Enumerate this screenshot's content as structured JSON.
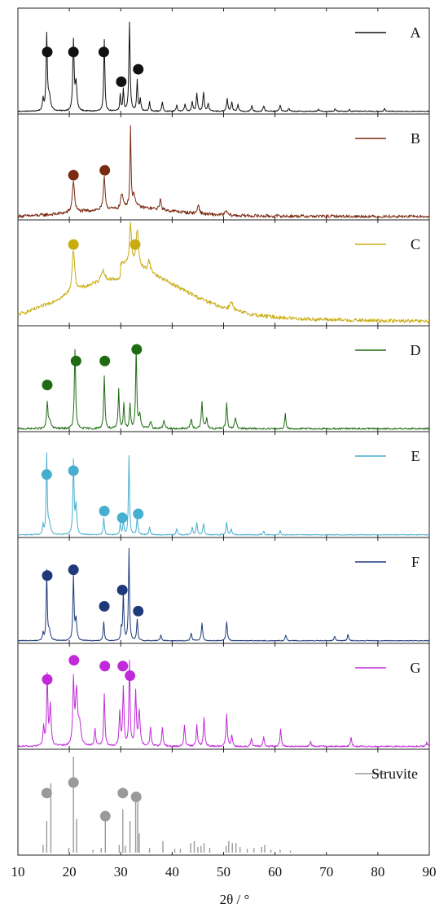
{
  "chart_data": {
    "type": "line",
    "xlabel": "2θ / °",
    "xlim": [
      10,
      90
    ],
    "x_ticks": [
      "10",
      "20",
      "30",
      "40",
      "50",
      "60",
      "70",
      "80",
      "90"
    ],
    "x_tick_values": [
      10,
      20,
      30,
      40,
      50,
      60,
      70,
      80,
      90
    ],
    "grid": false,
    "legend_placement": "top-right of each panel",
    "marker_shape": "circle",
    "series": [
      {
        "name": "A",
        "color": "#111111",
        "noise": 0.012,
        "bump": null,
        "style": "line",
        "peaks": [
          [
            14.9,
            0.12,
            0.14
          ],
          [
            15.6,
            0.78,
            0.14
          ],
          [
            16.1,
            0.15,
            0.3
          ],
          [
            20.8,
            0.72,
            0.15
          ],
          [
            21.3,
            0.28,
            0.2
          ],
          [
            26.8,
            0.74,
            0.13
          ],
          [
            29.9,
            0.17,
            0.12
          ],
          [
            30.5,
            0.22,
            0.12
          ],
          [
            31.7,
            0.92,
            0.14
          ],
          [
            33.2,
            0.32,
            0.13
          ],
          [
            33.8,
            0.12,
            0.15
          ],
          [
            35.6,
            0.1,
            0.12
          ],
          [
            38.1,
            0.09,
            0.15
          ],
          [
            40.9,
            0.06,
            0.15
          ],
          [
            42.5,
            0.08,
            0.15
          ],
          [
            43.9,
            0.1,
            0.15
          ],
          [
            44.8,
            0.18,
            0.15
          ],
          [
            46.1,
            0.2,
            0.15
          ],
          [
            47.0,
            0.08,
            0.15
          ],
          [
            50.7,
            0.13,
            0.15
          ],
          [
            51.6,
            0.09,
            0.15
          ],
          [
            52.8,
            0.07,
            0.15
          ],
          [
            55.5,
            0.06,
            0.15
          ],
          [
            57.8,
            0.06,
            0.15
          ],
          [
            61.0,
            0.07,
            0.15
          ],
          [
            62.7,
            0.03,
            0.15
          ],
          [
            68.5,
            0.02,
            0.15
          ],
          [
            71.7,
            0.03,
            0.15
          ],
          [
            74.5,
            0.02,
            0.15
          ],
          [
            81.3,
            0.03,
            0.15
          ]
        ],
        "markers": [
          [
            15.7,
            0.62
          ],
          [
            20.8,
            0.62
          ],
          [
            26.7,
            0.62
          ],
          [
            30.1,
            0.31
          ],
          [
            33.4,
            0.44
          ]
        ]
      },
      {
        "name": "B",
        "color": "#7a2a10",
        "noise": 0.035,
        "bump": [
          30,
          9,
          0.08
        ],
        "style": "line",
        "peaks": [
          [
            20.8,
            0.33,
            0.25
          ],
          [
            26.8,
            0.34,
            0.2
          ],
          [
            30.2,
            0.12,
            0.3
          ],
          [
            31.9,
            0.82,
            0.12
          ],
          [
            32.6,
            0.12,
            0.3
          ],
          [
            37.7,
            0.13,
            0.15
          ],
          [
            45.1,
            0.1,
            0.2
          ],
          [
            50.5,
            0.05,
            0.2
          ]
        ],
        "markers": [
          [
            20.8,
            0.44
          ],
          [
            26.9,
            0.49
          ]
        ]
      },
      {
        "name": "C",
        "color": "#c9ac10",
        "noise": 0.04,
        "bump": [
          30,
          11,
          0.45
        ],
        "style": "line",
        "peaks": [
          [
            20.8,
            0.45,
            0.3
          ],
          [
            26.5,
            0.12,
            0.4
          ],
          [
            31.9,
            0.42,
            0.25
          ],
          [
            33.2,
            0.38,
            0.3
          ],
          [
            35.5,
            0.12,
            0.3
          ],
          [
            51.5,
            0.1,
            0.3
          ]
        ],
        "markers": [
          [
            20.8,
            0.82
          ],
          [
            32.8,
            0.82
          ]
        ]
      },
      {
        "name": "D",
        "color": "#1e6b12",
        "noise": 0.022,
        "bump": null,
        "style": "line",
        "peaks": [
          [
            15.7,
            0.27,
            0.15
          ],
          [
            16.2,
            0.08,
            0.3
          ],
          [
            21.1,
            0.83,
            0.15
          ],
          [
            26.8,
            0.56,
            0.14
          ],
          [
            29.6,
            0.41,
            0.13
          ],
          [
            30.6,
            0.27,
            0.13
          ],
          [
            31.8,
            0.25,
            0.14
          ],
          [
            33.0,
            0.85,
            0.13
          ],
          [
            33.7,
            0.15,
            0.2
          ],
          [
            35.8,
            0.08,
            0.2
          ],
          [
            38.4,
            0.08,
            0.2
          ],
          [
            43.7,
            0.1,
            0.2
          ],
          [
            45.8,
            0.28,
            0.15
          ],
          [
            46.7,
            0.1,
            0.2
          ],
          [
            50.6,
            0.26,
            0.15
          ],
          [
            52.3,
            0.12,
            0.2
          ],
          [
            62.0,
            0.17,
            0.13
          ]
        ],
        "markers": [
          [
            15.7,
            0.46
          ],
          [
            21.3,
            0.71
          ],
          [
            26.9,
            0.71
          ],
          [
            33.1,
            0.83
          ]
        ]
      },
      {
        "name": "E",
        "color": "#46aed0",
        "noise": 0.012,
        "bump": null,
        "style": "line",
        "peaks": [
          [
            14.9,
            0.1,
            0.12
          ],
          [
            15.6,
            0.82,
            0.12
          ],
          [
            16.1,
            0.12,
            0.25
          ],
          [
            20.8,
            0.76,
            0.13
          ],
          [
            21.3,
            0.3,
            0.18
          ],
          [
            26.7,
            0.18,
            0.13
          ],
          [
            29.9,
            0.12,
            0.12
          ],
          [
            30.5,
            0.16,
            0.12
          ],
          [
            31.6,
            0.82,
            0.12
          ],
          [
            33.2,
            0.2,
            0.13
          ],
          [
            35.6,
            0.08,
            0.15
          ],
          [
            40.9,
            0.06,
            0.15
          ],
          [
            43.9,
            0.08,
            0.15
          ],
          [
            44.8,
            0.12,
            0.15
          ],
          [
            46.1,
            0.12,
            0.15
          ],
          [
            50.6,
            0.13,
            0.15
          ],
          [
            51.5,
            0.06,
            0.15
          ],
          [
            57.8,
            0.04,
            0.15
          ],
          [
            61.0,
            0.04,
            0.15
          ]
        ],
        "markers": [
          [
            15.6,
            0.63
          ],
          [
            20.8,
            0.67
          ],
          [
            26.8,
            0.25
          ],
          [
            30.3,
            0.18
          ],
          [
            33.4,
            0.22
          ]
        ]
      },
      {
        "name": "F",
        "color": "#1e3a7a",
        "noise": 0.01,
        "bump": null,
        "style": "line",
        "peaks": [
          [
            14.9,
            0.08,
            0.12
          ],
          [
            15.6,
            0.72,
            0.12
          ],
          [
            16.1,
            0.1,
            0.25
          ],
          [
            20.8,
            0.68,
            0.13
          ],
          [
            21.3,
            0.22,
            0.18
          ],
          [
            26.7,
            0.2,
            0.13
          ],
          [
            30.1,
            0.12,
            0.12
          ],
          [
            30.5,
            0.5,
            0.12
          ],
          [
            31.6,
            0.95,
            0.12
          ],
          [
            33.2,
            0.22,
            0.13
          ],
          [
            37.8,
            0.06,
            0.15
          ],
          [
            43.7,
            0.08,
            0.15
          ],
          [
            45.8,
            0.18,
            0.15
          ],
          [
            50.6,
            0.2,
            0.15
          ],
          [
            62.1,
            0.06,
            0.15
          ],
          [
            71.6,
            0.05,
            0.15
          ],
          [
            74.2,
            0.07,
            0.15
          ]
        ],
        "markers": [
          [
            15.7,
            0.68
          ],
          [
            20.8,
            0.74
          ],
          [
            26.8,
            0.36
          ],
          [
            30.3,
            0.53
          ],
          [
            33.4,
            0.31
          ]
        ]
      },
      {
        "name": "G",
        "color": "#c02ad8",
        "noise": 0.018,
        "bump": null,
        "style": "line",
        "peaks": [
          [
            15.0,
            0.2,
            0.15
          ],
          [
            15.7,
            0.72,
            0.14
          ],
          [
            16.3,
            0.42,
            0.18
          ],
          [
            20.8,
            0.65,
            0.16
          ],
          [
            21.4,
            0.55,
            0.25
          ],
          [
            22.0,
            0.2,
            0.3
          ],
          [
            25.0,
            0.18,
            0.15
          ],
          [
            26.8,
            0.55,
            0.14
          ],
          [
            29.8,
            0.35,
            0.15
          ],
          [
            30.5,
            0.6,
            0.15
          ],
          [
            31.7,
            0.88,
            0.13
          ],
          [
            32.9,
            0.55,
            0.15
          ],
          [
            33.6,
            0.35,
            0.2
          ],
          [
            35.8,
            0.2,
            0.15
          ],
          [
            38.1,
            0.2,
            0.15
          ],
          [
            42.4,
            0.22,
            0.15
          ],
          [
            44.8,
            0.22,
            0.15
          ],
          [
            46.2,
            0.3,
            0.15
          ],
          [
            50.6,
            0.33,
            0.15
          ],
          [
            51.6,
            0.12,
            0.15
          ],
          [
            55.4,
            0.08,
            0.15
          ],
          [
            57.8,
            0.1,
            0.15
          ],
          [
            61.1,
            0.18,
            0.15
          ],
          [
            66.9,
            0.05,
            0.15
          ],
          [
            74.8,
            0.1,
            0.15
          ],
          [
            89.5,
            0.04,
            0.15
          ]
        ],
        "markers": [
          [
            15.7,
            0.7
          ],
          [
            20.9,
            0.9
          ],
          [
            26.9,
            0.84
          ],
          [
            30.4,
            0.84
          ],
          [
            31.8,
            0.74
          ]
        ]
      },
      {
        "name": "Struvite",
        "color": "#9a9a9a",
        "noise": 0,
        "bump": null,
        "style": "sticks",
        "peaks": [
          [
            14.9,
            0.08
          ],
          [
            15.6,
            0.33
          ],
          [
            16.4,
            0.72
          ],
          [
            19.9,
            0.05
          ],
          [
            20.8,
            1.0
          ],
          [
            21.4,
            0.35
          ],
          [
            24.6,
            0.03
          ],
          [
            26.2,
            0.05
          ],
          [
            27.0,
            0.35
          ],
          [
            29.7,
            0.08
          ],
          [
            30.4,
            0.45
          ],
          [
            30.9,
            0.07
          ],
          [
            31.8,
            0.33
          ],
          [
            32.9,
            0.58
          ],
          [
            33.3,
            0.6
          ],
          [
            33.6,
            0.2
          ],
          [
            35.6,
            0.05
          ],
          [
            38.2,
            0.12
          ],
          [
            40.5,
            0.04
          ],
          [
            41.6,
            0.04
          ],
          [
            43.6,
            0.1
          ],
          [
            44.3,
            0.12
          ],
          [
            45.0,
            0.06
          ],
          [
            45.6,
            0.07
          ],
          [
            46.2,
            0.1
          ],
          [
            47.3,
            0.05
          ],
          [
            50.5,
            0.07
          ],
          [
            51.0,
            0.12
          ],
          [
            51.7,
            0.1
          ],
          [
            52.4,
            0.1
          ],
          [
            53.2,
            0.06
          ],
          [
            54.6,
            0.04
          ],
          [
            55.9,
            0.05
          ],
          [
            57.4,
            0.06
          ],
          [
            58.0,
            0.08
          ],
          [
            59.2,
            0.03
          ],
          [
            61.0,
            0.03
          ],
          [
            63.0,
            0.02
          ]
        ],
        "markers": [
          [
            15.6,
            0.62
          ],
          [
            20.8,
            0.73
          ],
          [
            27.0,
            0.38
          ],
          [
            30.4,
            0.62
          ],
          [
            33.0,
            0.58
          ]
        ]
      }
    ]
  }
}
